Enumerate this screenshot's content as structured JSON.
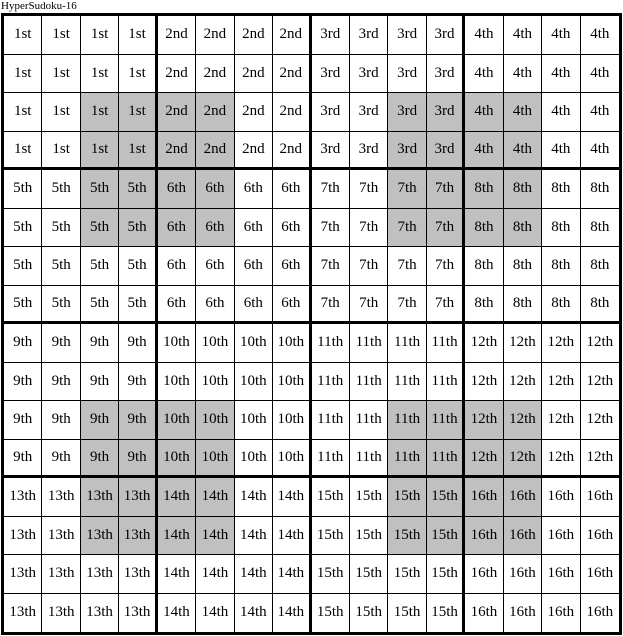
{
  "title": "HyperSudoku-16",
  "grid": {
    "size": 16,
    "box_size": 4,
    "box_labels": [
      "1st",
      "2nd",
      "3rd",
      "4th",
      "5th",
      "6th",
      "7th",
      "8th",
      "9th",
      "10th",
      "11th",
      "12th",
      "13th",
      "14th",
      "15th",
      "16th"
    ],
    "hyper_region_origins": [
      [
        2,
        2
      ],
      [
        2,
        10
      ],
      [
        10,
        2
      ],
      [
        10,
        10
      ]
    ],
    "hyper_region_size": 4,
    "colors": {
      "hyper_fill": "#c0c0c0",
      "cell_fill": "#ffffff",
      "lines": "#000000"
    }
  }
}
